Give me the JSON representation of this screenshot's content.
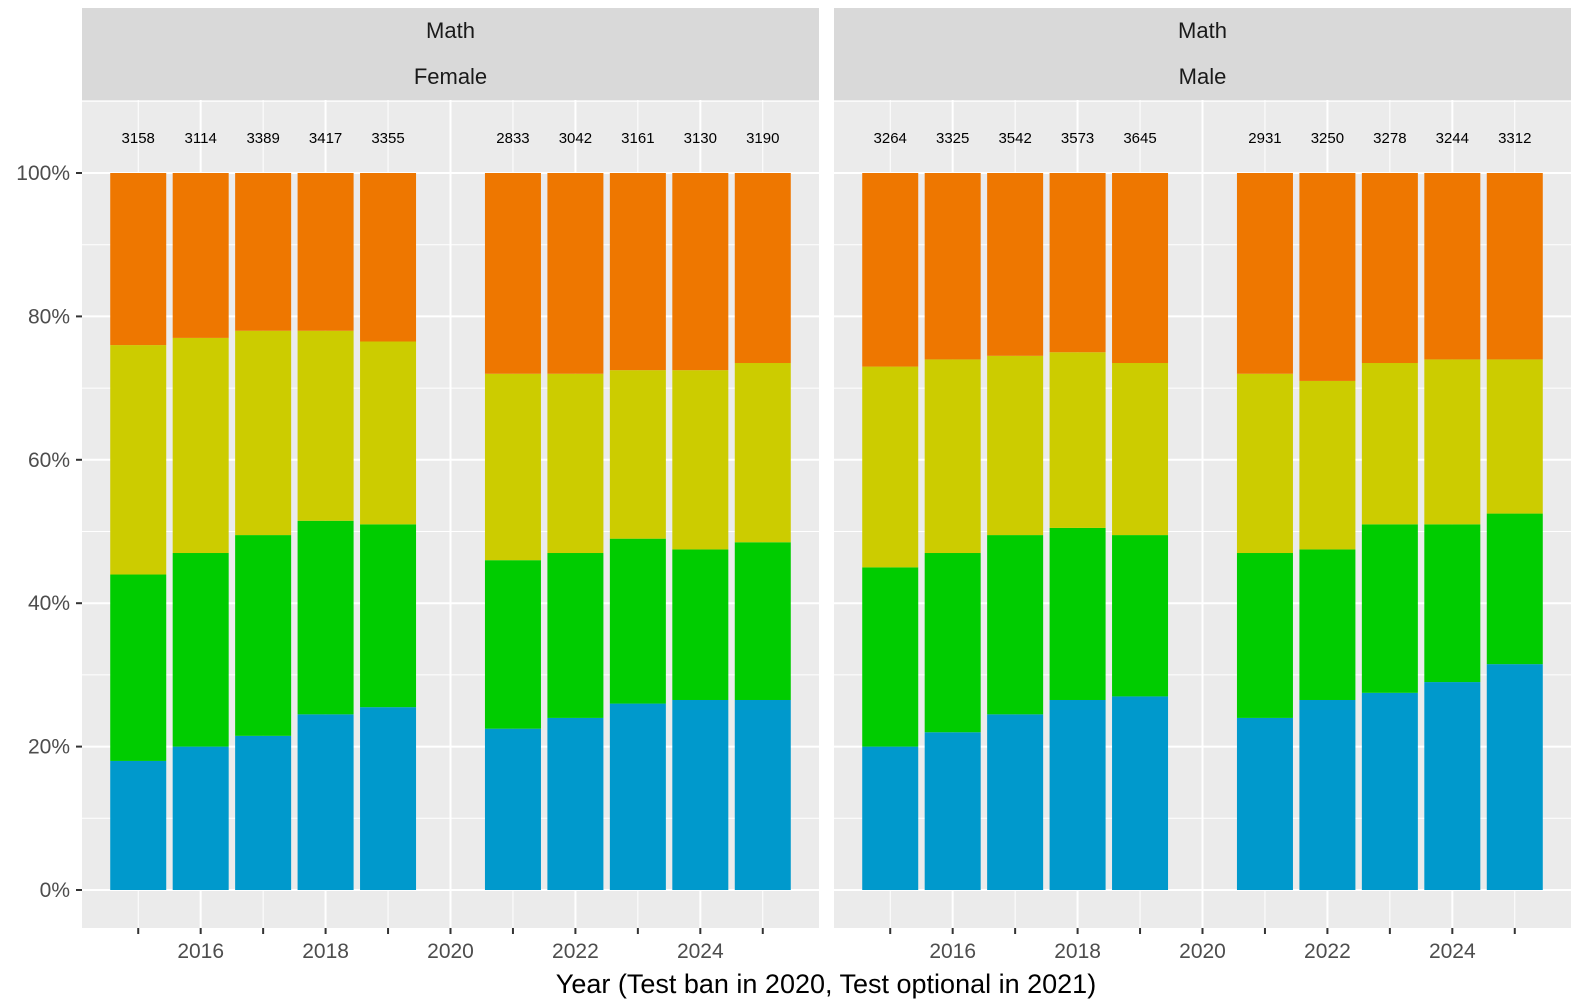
{
  "chart_data": {
    "type": "bar",
    "stacked": true,
    "xlabel": "Year (Test ban in 2020, Test optional in 2021)",
    "ylabel": "",
    "ylim": [
      0,
      1
    ],
    "y_ticks": [
      "0%",
      "20%",
      "40%",
      "60%",
      "80%",
      "100%"
    ],
    "x_tick_labels": [
      "2016",
      "2018",
      "2020",
      "2022",
      "2024"
    ],
    "grid": true,
    "legend": "none",
    "colors": [
      "#0099cc",
      "#00cc00",
      "#cccc00",
      "#ee7700"
    ],
    "panels": [
      {
        "strip_top": "Math",
        "strip_bottom": "Female",
        "years": [
          2015,
          2016,
          2017,
          2018,
          2019,
          2021,
          2022,
          2023,
          2024,
          2025
        ],
        "counts": [
          "3158",
          "3114",
          "3389",
          "3417",
          "3355",
          "2833",
          "3042",
          "3161",
          "3130",
          "3190"
        ],
        "cumulative": [
          [
            0.18,
            0.44,
            0.76
          ],
          [
            0.2,
            0.47,
            0.77
          ],
          [
            0.215,
            0.495,
            0.78
          ],
          [
            0.245,
            0.515,
            0.78
          ],
          [
            0.255,
            0.51,
            0.765
          ],
          [
            0.225,
            0.46,
            0.72
          ],
          [
            0.24,
            0.47,
            0.72
          ],
          [
            0.26,
            0.49,
            0.725
          ],
          [
            0.265,
            0.475,
            0.725
          ],
          [
            0.265,
            0.485,
            0.735
          ]
        ]
      },
      {
        "strip_top": "Math",
        "strip_bottom": "Male",
        "years": [
          2015,
          2016,
          2017,
          2018,
          2019,
          2021,
          2022,
          2023,
          2024,
          2025
        ],
        "counts": [
          "3264",
          "3325",
          "3542",
          "3573",
          "3645",
          "2931",
          "3250",
          "3278",
          "3244",
          "3312"
        ],
        "cumulative": [
          [
            0.2,
            0.45,
            0.73
          ],
          [
            0.22,
            0.47,
            0.74
          ],
          [
            0.245,
            0.495,
            0.745
          ],
          [
            0.265,
            0.505,
            0.75
          ],
          [
            0.27,
            0.495,
            0.735
          ],
          [
            0.24,
            0.47,
            0.72
          ],
          [
            0.265,
            0.475,
            0.71
          ],
          [
            0.275,
            0.51,
            0.735
          ],
          [
            0.29,
            0.51,
            0.74
          ],
          [
            0.315,
            0.525,
            0.74
          ]
        ]
      }
    ]
  }
}
